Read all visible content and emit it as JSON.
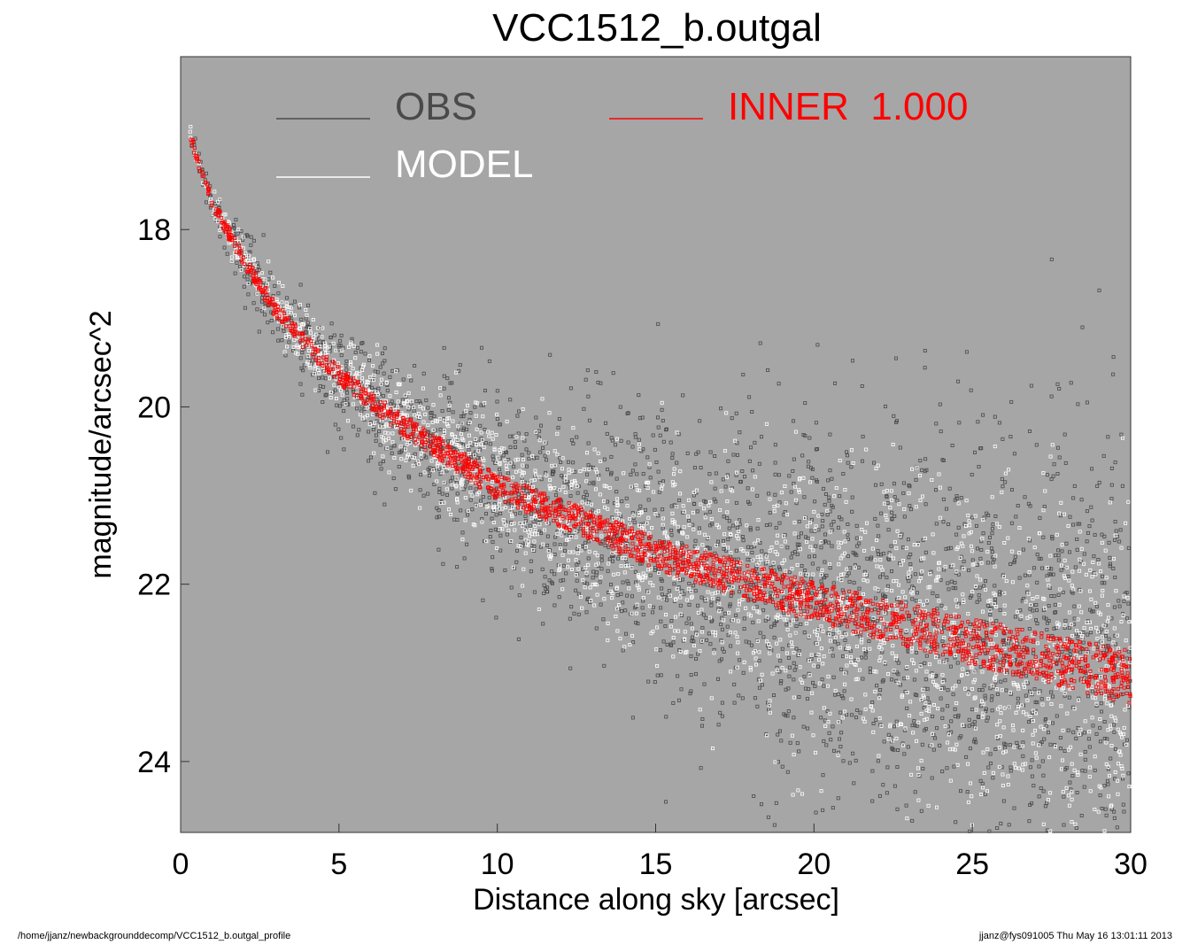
{
  "chart_data": {
    "type": "scatter",
    "title": "VCC1512_b.outgal",
    "xlabel": "Distance along sky [arcsec]",
    "ylabel": "magnitude/arcsec^2",
    "xlim": [
      0,
      30
    ],
    "ylim": [
      24.8,
      16.05
    ],
    "y_inverted": true,
    "x_ticks": [
      0,
      5,
      10,
      15,
      20,
      25,
      30
    ],
    "y_ticks": [
      18,
      20,
      22,
      24
    ],
    "background_color": "#a6a6a6",
    "grid": false,
    "legend_placement": "top",
    "profile_model": {
      "description_of_trend": "surface brightness profile",
      "center_points": [
        [
          0.3,
          16.95
        ],
        [
          1,
          17.7
        ],
        [
          2,
          18.35
        ],
        [
          3,
          18.9
        ],
        [
          4,
          19.3
        ],
        [
          5,
          19.65
        ],
        [
          7,
          20.2
        ],
        [
          10,
          20.9
        ],
        [
          15,
          21.65
        ],
        [
          20,
          22.2
        ],
        [
          25,
          22.65
        ],
        [
          30,
          23.05
        ]
      ]
    },
    "series": [
      {
        "name": "OBS",
        "color": "#4a4a4a",
        "marker": "open-square"
      },
      {
        "name": "MODEL",
        "color": "#ffffff",
        "marker": "open-square"
      },
      {
        "name": "INNER  1.000",
        "color": "#ff0000",
        "marker": "open-square"
      }
    ]
  },
  "legend": {
    "obs_label": "OBS",
    "model_label": "MODEL",
    "inner_label": "INNER  1.000"
  },
  "footer": {
    "left": "/home/jjanz/newbackgrounddecomp/VCC1512_b.outgal_profile",
    "right": "jjanz@fys091005  Thu May 16 13:01:11 2013"
  }
}
